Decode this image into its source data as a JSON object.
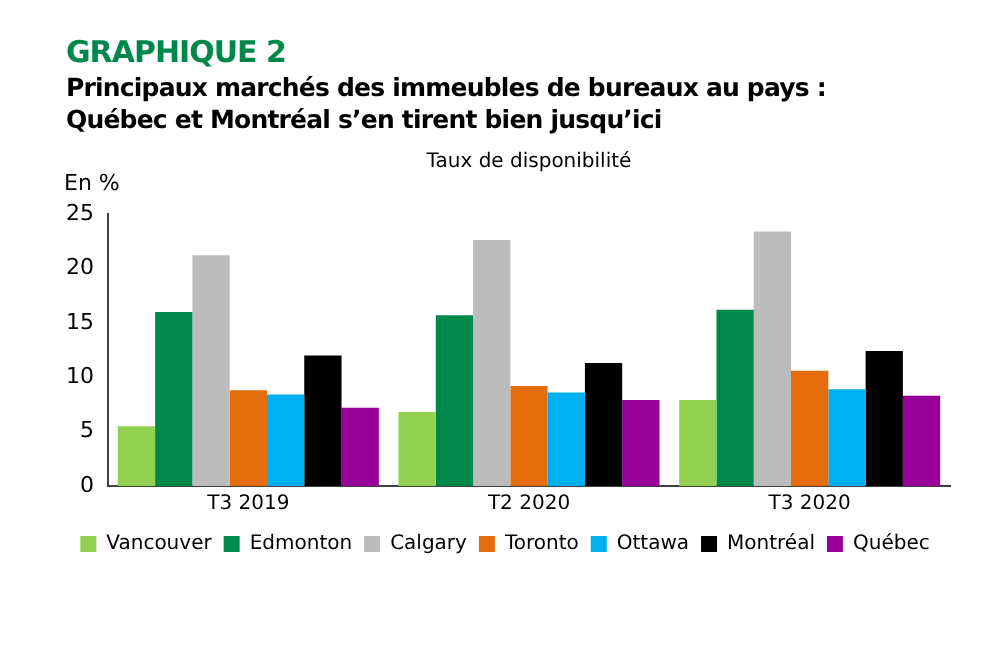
{
  "chart_data": {
    "type": "bar",
    "title": "GRAPHIQUE 2",
    "subtitle": "Principaux marchés des immeubles de bureaux au pays :\nQuébec et Montréal s’en tirent bien jusqu’ici",
    "ylabel": "En %",
    "annotations": [
      "Taux de disponibilité"
    ],
    "categories": [
      "T3 2019",
      "T2 2020",
      "T3 2020"
    ],
    "series": [
      {
        "name": "Vancouver",
        "color": "#92d050",
        "values": [
          5.5,
          6.8,
          7.9
        ]
      },
      {
        "name": "Edmonton",
        "color": "#00884a",
        "values": [
          16.0,
          15.7,
          16.2
        ]
      },
      {
        "name": "Calgary",
        "color": "#bcbcbc",
        "values": [
          21.2,
          22.6,
          23.4
        ]
      },
      {
        "name": "Toronto",
        "color": "#e46c0a",
        "values": [
          8.8,
          9.2,
          10.6
        ]
      },
      {
        "name": "Ottawa",
        "color": "#00b0f0",
        "values": [
          8.4,
          8.6,
          8.9
        ]
      },
      {
        "name": "Montréal",
        "color": "#000000",
        "values": [
          12.0,
          11.3,
          12.4
        ]
      },
      {
        "name": "Québec",
        "color": "#990099",
        "values": [
          7.2,
          7.9,
          8.3
        ]
      }
    ],
    "ylim": [
      0,
      25
    ],
    "yticks": [
      0,
      5,
      10,
      15,
      20,
      25
    ],
    "grid": false,
    "legend": "bottom"
  }
}
